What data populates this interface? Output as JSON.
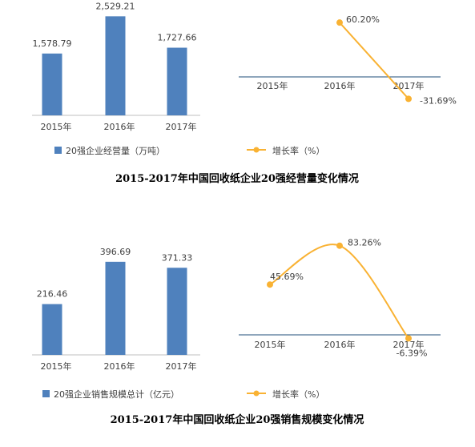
{
  "colors": {
    "bar": "#4f81bd",
    "line": "#f9b233",
    "axis": "#bfbfbf",
    "rate_axis": "#1f4e79"
  },
  "charts": [
    {
      "title": "2015-2017年中国回收纸企业20强经营量变化情况",
      "bar_chart_data": {
        "type": "bar",
        "categories": [
          "2015年",
          "2016年",
          "2017年"
        ],
        "values": [
          1578.79,
          2529.21,
          1727.66
        ],
        "value_labels": [
          "1,578.79",
          "2,529.21",
          "1,727.66"
        ],
        "series_name": "20强企业经营量（万吨）",
        "ylim": [
          0,
          2700
        ]
      },
      "line_chart_data": {
        "type": "line",
        "categories": [
          "2015年",
          "2016年",
          "2017年"
        ],
        "values": [
          null,
          60.2,
          -31.69
        ],
        "value_labels": [
          "",
          "60.20%",
          "-31.69%"
        ],
        "series_name": "增长率（%）",
        "ylim": [
          -40,
          70
        ]
      }
    },
    {
      "title": "2015-2017年中国回收纸企业20强销售规模变化情况",
      "bar_chart_data": {
        "type": "bar",
        "categories": [
          "2015年",
          "2016年",
          "2017年"
        ],
        "values": [
          216.46,
          396.69,
          371.33
        ],
        "value_labels": [
          "216.46",
          "396.69",
          "371.33"
        ],
        "series_name": "20强企业销售规模总计（亿元）",
        "ylim": [
          0,
          420
        ]
      },
      "line_chart_data": {
        "type": "line",
        "categories": [
          "2015年",
          "2016年",
          "2017年"
        ],
        "values": [
          45.69,
          83.26,
          -6.39
        ],
        "value_labels": [
          "45.69%",
          "83.26%",
          "-6.39%"
        ],
        "series_name": "增长率（%）",
        "ylim": [
          -20,
          90
        ]
      }
    }
  ]
}
